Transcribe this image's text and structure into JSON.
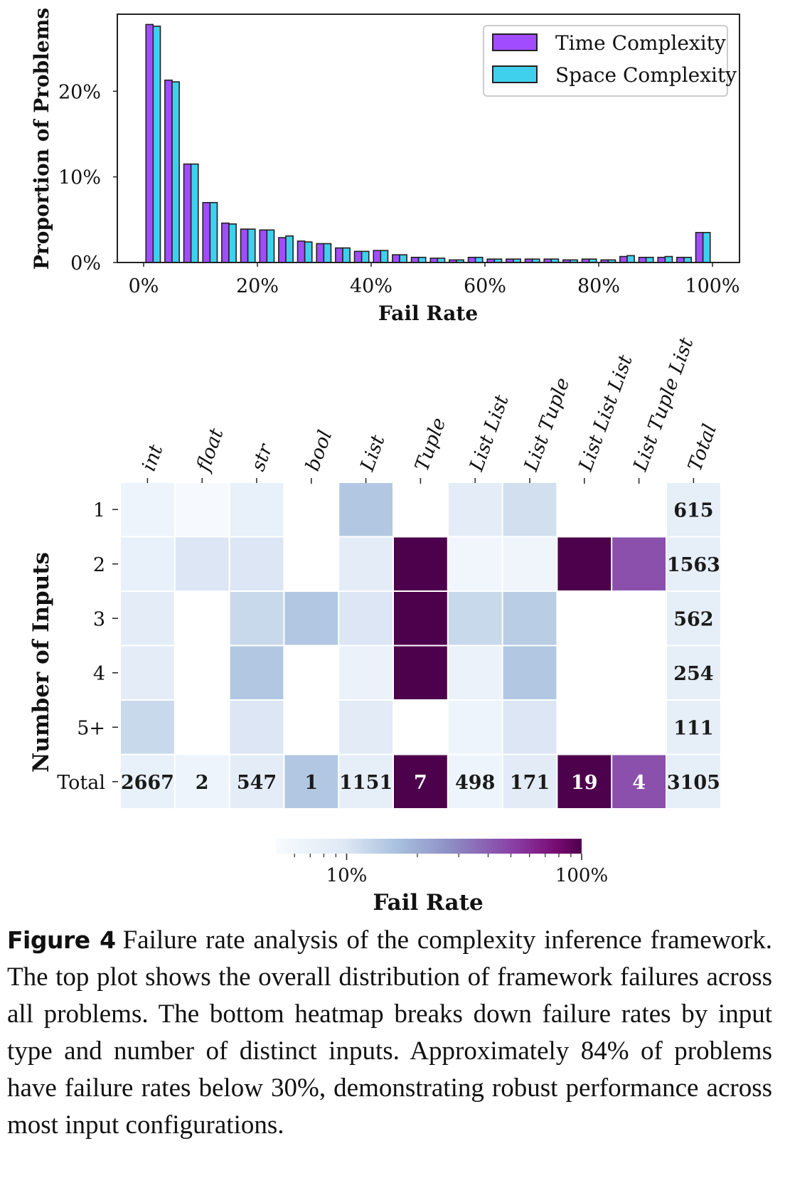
{
  "chart_data": [
    {
      "type": "bar",
      "xlabel": "Fail Rate",
      "ylabel": "Proportion of Problems",
      "xlim": [
        0,
        100
      ],
      "ylim": [
        0,
        29
      ],
      "xticks": [
        0,
        20,
        40,
        60,
        80,
        100
      ],
      "xtick_labels": [
        "0%",
        "20%",
        "40%",
        "60%",
        "80%",
        "100%"
      ],
      "yticks": [
        0,
        10,
        20
      ],
      "ytick_labels": [
        "0%",
        "10%",
        "20%"
      ],
      "legend_position": "top-right",
      "grid": false,
      "bin_width": 3.33,
      "x": [
        1.67,
        5.0,
        8.33,
        11.67,
        15.0,
        18.33,
        21.67,
        25.0,
        28.33,
        31.67,
        35.0,
        38.33,
        41.67,
        45.0,
        48.33,
        51.67,
        55.0,
        58.33,
        61.67,
        65.0,
        68.33,
        71.67,
        75.0,
        78.33,
        81.67,
        85.0,
        88.33,
        91.67,
        95.0,
        98.33
      ],
      "series": [
        {
          "name": "Time Complexity",
          "color": "#a24cff",
          "values": [
            27.8,
            21.3,
            11.5,
            7.0,
            4.6,
            3.9,
            3.8,
            2.9,
            2.5,
            2.2,
            1.7,
            1.3,
            1.4,
            0.9,
            0.6,
            0.5,
            0.3,
            0.6,
            0.4,
            0.4,
            0.4,
            0.4,
            0.3,
            0.4,
            0.3,
            0.7,
            0.6,
            0.6,
            0.6,
            3.5
          ]
        },
        {
          "name": "Space Complexity",
          "color": "#3fd0ee",
          "values": [
            27.6,
            21.1,
            11.5,
            7.0,
            4.5,
            3.9,
            3.8,
            3.1,
            2.4,
            2.2,
            1.7,
            1.3,
            1.4,
            0.9,
            0.6,
            0.5,
            0.3,
            0.6,
            0.4,
            0.4,
            0.4,
            0.4,
            0.3,
            0.4,
            0.3,
            0.8,
            0.6,
            0.7,
            0.6,
            3.5
          ]
        }
      ]
    },
    {
      "type": "heatmap",
      "xlabel": "",
      "ylabel": "Number of Inputs",
      "colorbar_label": "Fail Rate",
      "colorbar_scale": "log",
      "colorbar_range": [
        0.05,
        1.0
      ],
      "colorbar_ticks": [
        "10%",
        "100%"
      ],
      "columns": [
        "int",
        "float",
        "str",
        "bool",
        "List",
        "Tuple",
        "List List",
        "List Tuple",
        "List List List",
        "List Tuple List",
        "Total"
      ],
      "rows": [
        "1",
        "2",
        "3",
        "4",
        "5+",
        "Total"
      ],
      "fail_rates": [
        [
          0.065,
          0.052,
          0.075,
          null,
          0.15,
          null,
          0.085,
          0.11,
          null,
          null,
          0.08
        ],
        [
          0.075,
          0.1,
          0.1,
          null,
          0.085,
          1.0,
          0.06,
          0.063,
          1.0,
          0.45,
          0.08
        ],
        [
          0.085,
          null,
          0.12,
          0.15,
          0.1,
          1.0,
          0.12,
          0.14,
          null,
          null,
          0.08
        ],
        [
          0.085,
          null,
          0.15,
          null,
          0.07,
          1.0,
          0.07,
          0.15,
          null,
          null,
          0.08
        ],
        [
          0.12,
          null,
          0.1,
          null,
          0.09,
          null,
          0.065,
          0.1,
          null,
          null,
          0.08
        ],
        [
          0.075,
          0.065,
          0.085,
          0.15,
          0.08,
          1.0,
          0.065,
          0.09,
          1.0,
          0.45,
          0.08
        ]
      ],
      "cell_labels": [
        [
          "",
          "",
          "",
          "",
          "",
          "",
          "",
          "",
          "",
          "",
          "615"
        ],
        [
          "",
          "",
          "",
          "",
          "",
          "",
          "",
          "",
          "",
          "",
          "1563"
        ],
        [
          "",
          "",
          "",
          "",
          "",
          "",
          "",
          "",
          "",
          "",
          "562"
        ],
        [
          "",
          "",
          "",
          "",
          "",
          "",
          "",
          "",
          "",
          "",
          "254"
        ],
        [
          "",
          "",
          "",
          "",
          "",
          "",
          "",
          "",
          "",
          "",
          "111"
        ],
        [
          "2667",
          "2",
          "547",
          "1",
          "1151",
          "7",
          "498",
          "171",
          "19",
          "4",
          "3105"
        ]
      ]
    }
  ],
  "caption": {
    "label": "Figure 4",
    "text": "Failure rate analysis of the complexity inference framework. The top plot shows the overall distribution of framework failures across all problems. The bottom heatmap breaks down failure rates by input type and number of distinct inputs. Approximately 84% of problems have failure rates below 30%, demonstrating robust performance across most input configurations."
  }
}
